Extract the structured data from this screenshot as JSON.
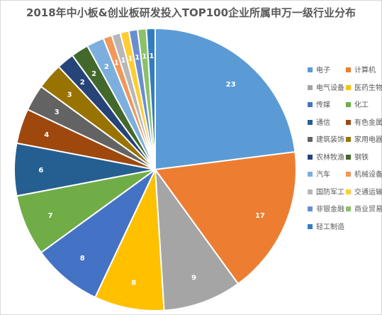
{
  "chart_data": {
    "type": "pie",
    "title": "2018年中小板&创业板研发投入TOP100企业所属申万一级行业分布",
    "legend_position": "right",
    "categories": [
      "电子",
      "计算机",
      "电气设备",
      "医药生物",
      "传媒",
      "化工",
      "通信",
      "有色金属",
      "建筑装饰",
      "家用电器",
      "农林牧渔",
      "钢铁",
      "汽车",
      "机械设备",
      "国防军工",
      "交通运输",
      "非银金融",
      "商业贸易",
      "轻工制造"
    ],
    "values": [
      23,
      17,
      9,
      8,
      8,
      7,
      6,
      4,
      3,
      3,
      2,
      2,
      2,
      1,
      1,
      1,
      1,
      1,
      1
    ],
    "colors": [
      "#5b9bd5",
      "#ed7d31",
      "#a5a5a5",
      "#ffc000",
      "#4472c4",
      "#70ad47",
      "#255e91",
      "#9e480e",
      "#636363",
      "#997300",
      "#264478",
      "#43682b",
      "#7cafdd",
      "#f1975a",
      "#b7b7b7",
      "#ffcd33",
      "#698ed0",
      "#8cc168",
      "#327dc2"
    ],
    "label_colors": [
      "#ffffff",
      "#ffffff",
      "#ffffff",
      "#ffffff",
      "#ffffff",
      "#ffffff",
      "#ffffff",
      "#ffffff",
      "#ffffff",
      "#ffffff",
      "#ffffff",
      "#ffffff",
      "#ffffff",
      "#ffffff",
      "#ffffff",
      "#ffffff",
      "#ffffff",
      "#ffffff",
      "#ffffff"
    ]
  }
}
